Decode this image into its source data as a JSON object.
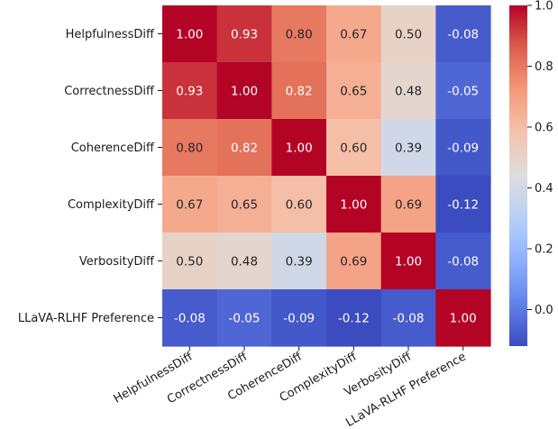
{
  "chart_data": {
    "type": "heatmap",
    "title": "",
    "xlabel": "",
    "ylabel": "",
    "x_labels": [
      "HelpfulnessDiff",
      "CorrectnessDiff",
      "CoherenceDiff",
      "ComplexityDiff",
      "VerbosityDiff",
      "LLaVA-RLHF Preference"
    ],
    "y_labels": [
      "HelpfulnessDiff",
      "CorrectnessDiff",
      "CoherenceDiff",
      "ComplexityDiff",
      "VerbosityDiff",
      "LLaVA-RLHF Preference"
    ],
    "values": [
      [
        1.0,
        0.93,
        0.8,
        0.67,
        0.5,
        -0.08
      ],
      [
        0.93,
        1.0,
        0.82,
        0.65,
        0.48,
        -0.05
      ],
      [
        0.8,
        0.82,
        1.0,
        0.6,
        0.39,
        -0.09
      ],
      [
        0.67,
        0.65,
        0.6,
        1.0,
        0.69,
        -0.12
      ],
      [
        0.5,
        0.48,
        0.39,
        0.69,
        1.0,
        -0.08
      ],
      [
        -0.08,
        -0.05,
        -0.09,
        -0.12,
        -0.08,
        1.0
      ]
    ],
    "value_format": "2 decimals",
    "colormap": "coolwarm",
    "color_range": [
      -0.12,
      1.0
    ],
    "colorbar": {
      "ticks": [
        0.0,
        0.2,
        0.4,
        0.6,
        0.8,
        1.0
      ],
      "tick_labels": [
        "0.0",
        "0.2",
        "0.4",
        "0.6",
        "0.8",
        "1.0"
      ],
      "placement": "right"
    },
    "grid": false,
    "x_label_rotation": "30 degrees"
  }
}
